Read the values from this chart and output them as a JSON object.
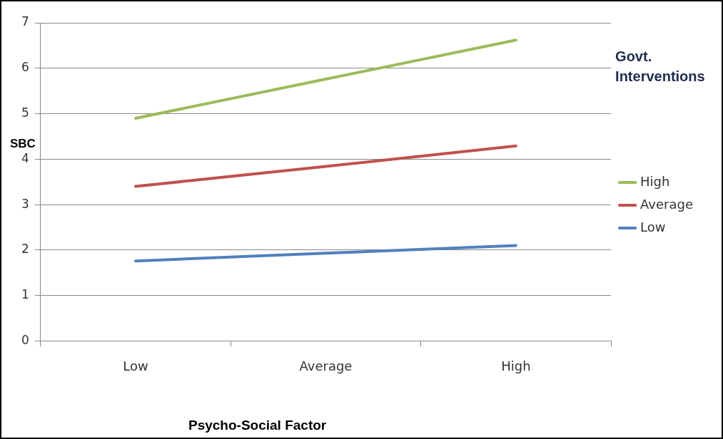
{
  "chart_data": {
    "type": "line",
    "xlabel": "Psycho-Social Factor",
    "ylabel": "SBC",
    "legend_title": "Govt. Interventions",
    "categories": [
      "Low",
      "Average",
      "High"
    ],
    "series": [
      {
        "name": "High",
        "color": "#9bbb59",
        "values": [
          4.9,
          5.76,
          6.62
        ]
      },
      {
        "name": "Average",
        "color": "#c0504d",
        "values": [
          3.4,
          3.84,
          4.29
        ]
      },
      {
        "name": "Low",
        "color": "#4f81bd",
        "values": [
          1.76,
          1.93,
          2.1
        ]
      }
    ],
    "ylim": [
      0,
      7
    ],
    "yticks": [
      0,
      1,
      2,
      3,
      4,
      5,
      6,
      7
    ],
    "grid": "y",
    "legend": "right",
    "marker": "none",
    "line_style": "solid"
  }
}
